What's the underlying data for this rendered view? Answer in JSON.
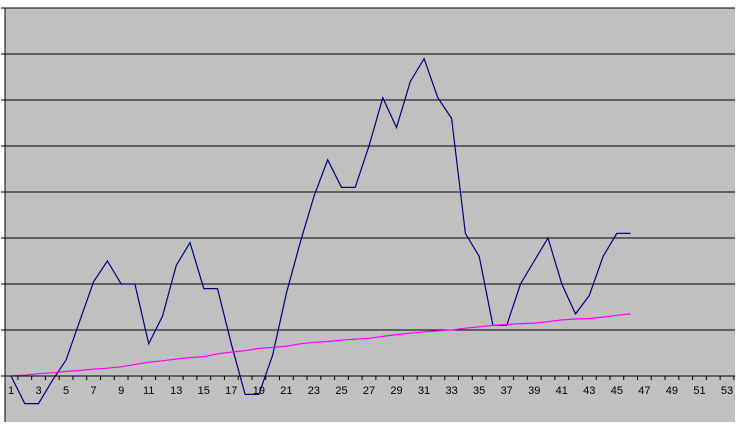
{
  "chart_data": {
    "type": "line",
    "categories": [
      1,
      null,
      3,
      null,
      5,
      null,
      7,
      null,
      9,
      null,
      11,
      null,
      13,
      null,
      15,
      null,
      17,
      null,
      19,
      null,
      21,
      null,
      23,
      null,
      25,
      null,
      27,
      null,
      29,
      null,
      31,
      null,
      33,
      null,
      35,
      null,
      37,
      null,
      39,
      null,
      41,
      null,
      43,
      null,
      45,
      null,
      47,
      null,
      49,
      null,
      51,
      null,
      53
    ],
    "series": [
      {
        "color": "#000080",
        "values": [
          0,
          -0.6,
          -0.6,
          -0.1,
          0.35,
          1.2,
          2.05,
          2.5,
          2.0,
          2.0,
          0.7,
          1.3,
          2.4,
          2.9,
          1.9,
          1.9,
          0.7,
          -0.4,
          -0.4,
          0.45,
          1.8,
          2.9,
          3.9,
          4.7,
          4.1,
          4.1,
          5.0,
          6.05,
          5.4,
          6.4,
          6.9,
          6.05,
          5.6,
          3.1,
          2.6,
          1.1,
          1.1,
          2.0,
          2.5,
          3.0,
          2.0,
          1.35,
          1.75,
          2.6,
          3.1,
          3.1,
          null,
          null,
          null,
          null,
          null,
          null,
          null
        ]
      },
      {
        "color": "#ff00ff",
        "values": [
          0,
          0.02,
          0.05,
          0.07,
          0.1,
          0.12,
          0.15,
          0.17,
          0.2,
          0.25,
          0.3,
          0.33,
          0.37,
          0.4,
          0.42,
          0.48,
          0.52,
          0.55,
          0.6,
          0.62,
          0.65,
          0.7,
          0.73,
          0.75,
          0.78,
          0.8,
          0.82,
          0.86,
          0.9,
          0.93,
          0.96,
          0.98,
          1.0,
          1.04,
          1.07,
          1.1,
          1.12,
          1.14,
          1.15,
          1.18,
          1.22,
          1.24,
          1.25,
          1.28,
          1.32,
          1.35,
          null,
          null,
          null,
          null,
          null,
          null,
          null
        ]
      }
    ],
    "ylim": [
      -1,
      8
    ],
    "yticks": [
      0,
      1,
      2,
      3,
      4,
      5,
      6,
      7,
      8
    ],
    "grid": true,
    "plot_color": "#c0c0c0"
  }
}
